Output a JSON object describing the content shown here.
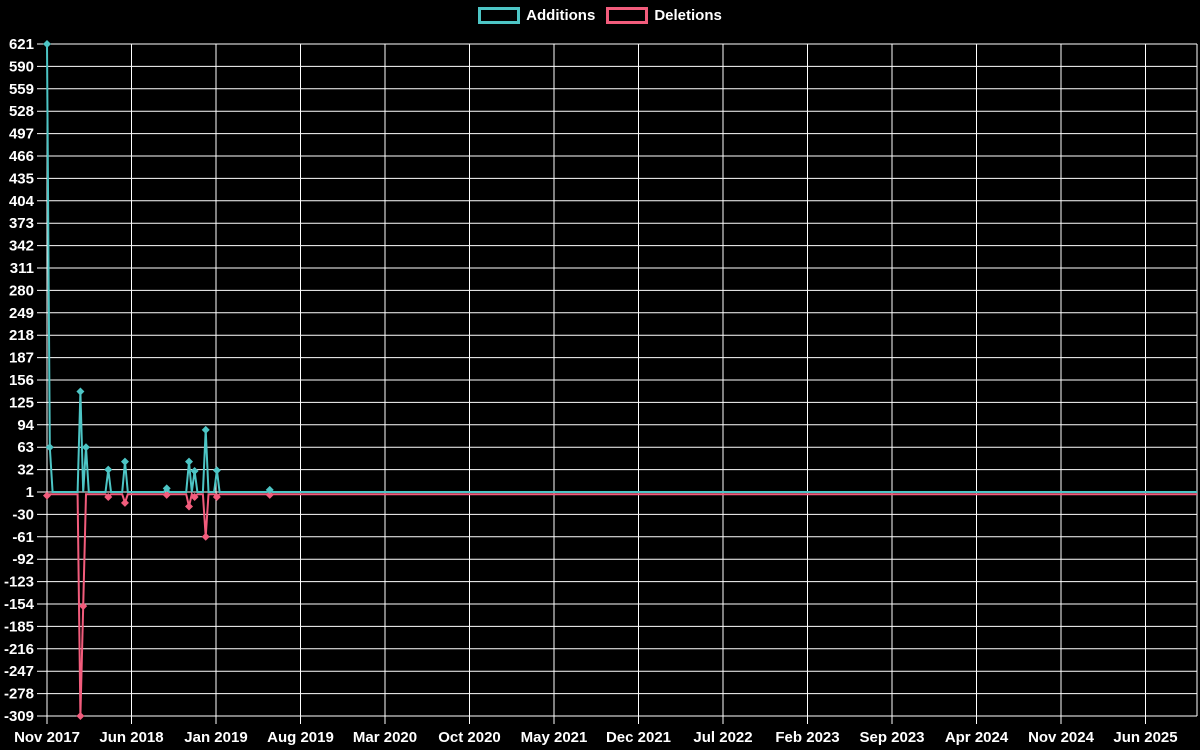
{
  "legend": {
    "items": [
      {
        "label": "Additions",
        "color": "#4DC5C5"
      },
      {
        "label": "Deletions",
        "color": "#F25C7C"
      }
    ]
  },
  "colors": {
    "background": "#000000",
    "grid": "#FFFFFF",
    "text": "#FFFFFF",
    "additions": "#4DC5C5",
    "deletions": "#F25C7C"
  },
  "chart_data": {
    "type": "line",
    "title": "",
    "legend_position": "top-center",
    "grid": true,
    "x_axis": {
      "tick_labels": [
        "Nov 2017",
        "Jun 2018",
        "Jan 2019",
        "Aug 2019",
        "Mar 2020",
        "Oct 2020",
        "May 2021",
        "Dec 2021",
        "Jul 2022",
        "Feb 2023",
        "Sep 2023",
        "Apr 2024",
        "Nov 2024",
        "Jun 2025"
      ],
      "months_per_tick": 7
    },
    "y_axis": {
      "tick_labels": [
        621,
        590,
        559,
        528,
        497,
        466,
        435,
        404,
        373,
        342,
        311,
        280,
        249,
        218,
        187,
        156,
        125,
        94,
        63,
        32,
        1,
        -30,
        -61,
        -92,
        -123,
        -154,
        -185,
        -216,
        -247,
        -278,
        -309
      ],
      "max": 621,
      "min": -309,
      "step": 31
    },
    "weeks_total": 413,
    "series": [
      {
        "name": "Additions",
        "color": "#4DC5C5",
        "baseline": 1,
        "points_weeks": {
          "0": 621,
          "1": 63,
          "12": 140,
          "14": 63,
          "22": 32,
          "28": 43,
          "43": 6,
          "51": 43,
          "53": 30,
          "57": 87,
          "61": 31,
          "80": 4
        }
      },
      {
        "name": "Deletions",
        "color": "#F25C7C",
        "baseline": -2,
        "points_weeks": {
          "0": -4,
          "12": -309,
          "13": -157,
          "22": -6,
          "28": -14,
          "43": -3,
          "51": -19,
          "53": -6,
          "57": -61,
          "61": -6,
          "80": -3
        }
      }
    ]
  }
}
